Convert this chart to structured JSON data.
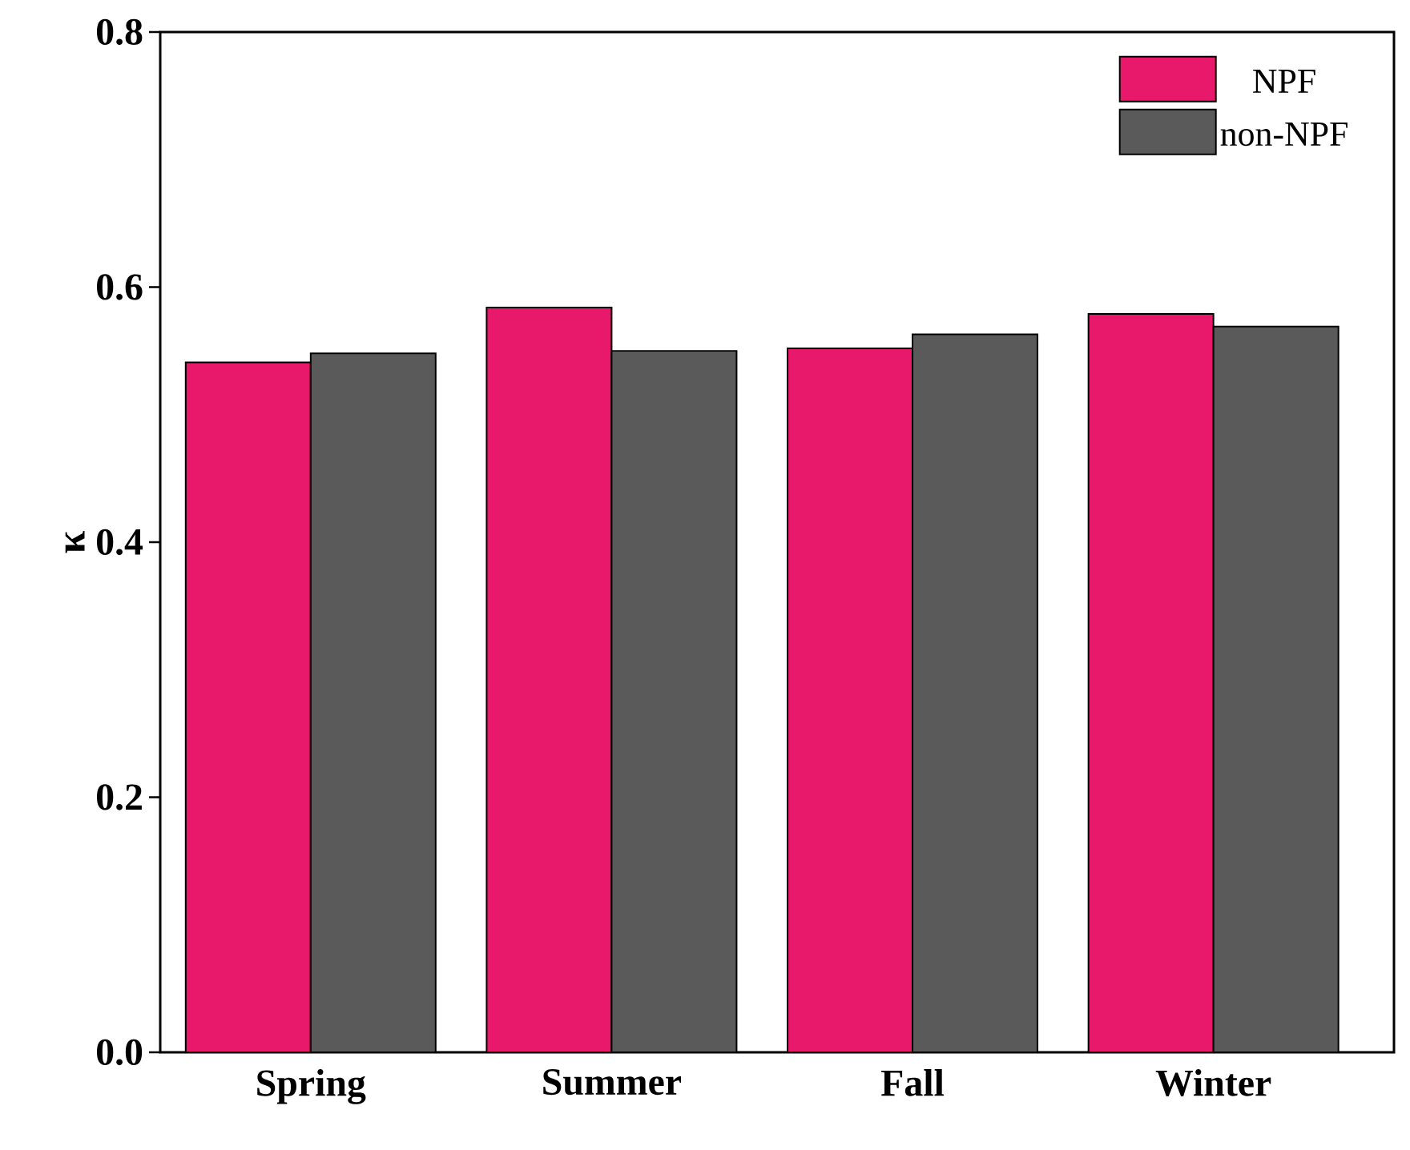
{
  "chart_data": {
    "type": "bar",
    "ylabel": "κ",
    "categories": [
      "Spring",
      "Summer",
      "Fall",
      "Winter"
    ],
    "series": [
      {
        "name": "NPF",
        "color": "#e8186a",
        "values": [
          0.541,
          0.584,
          0.552,
          0.579
        ]
      },
      {
        "name": "non-NPF",
        "color": "#5a5a5a",
        "values": [
          0.548,
          0.55,
          0.563,
          0.569
        ]
      }
    ],
    "ylim": [
      0,
      0.8
    ],
    "yticks": [
      {
        "value": 0,
        "label": "0.0"
      },
      0.2,
      0.4,
      0.6,
      0.8
    ],
    "legend": "top right",
    "grid": false
  }
}
